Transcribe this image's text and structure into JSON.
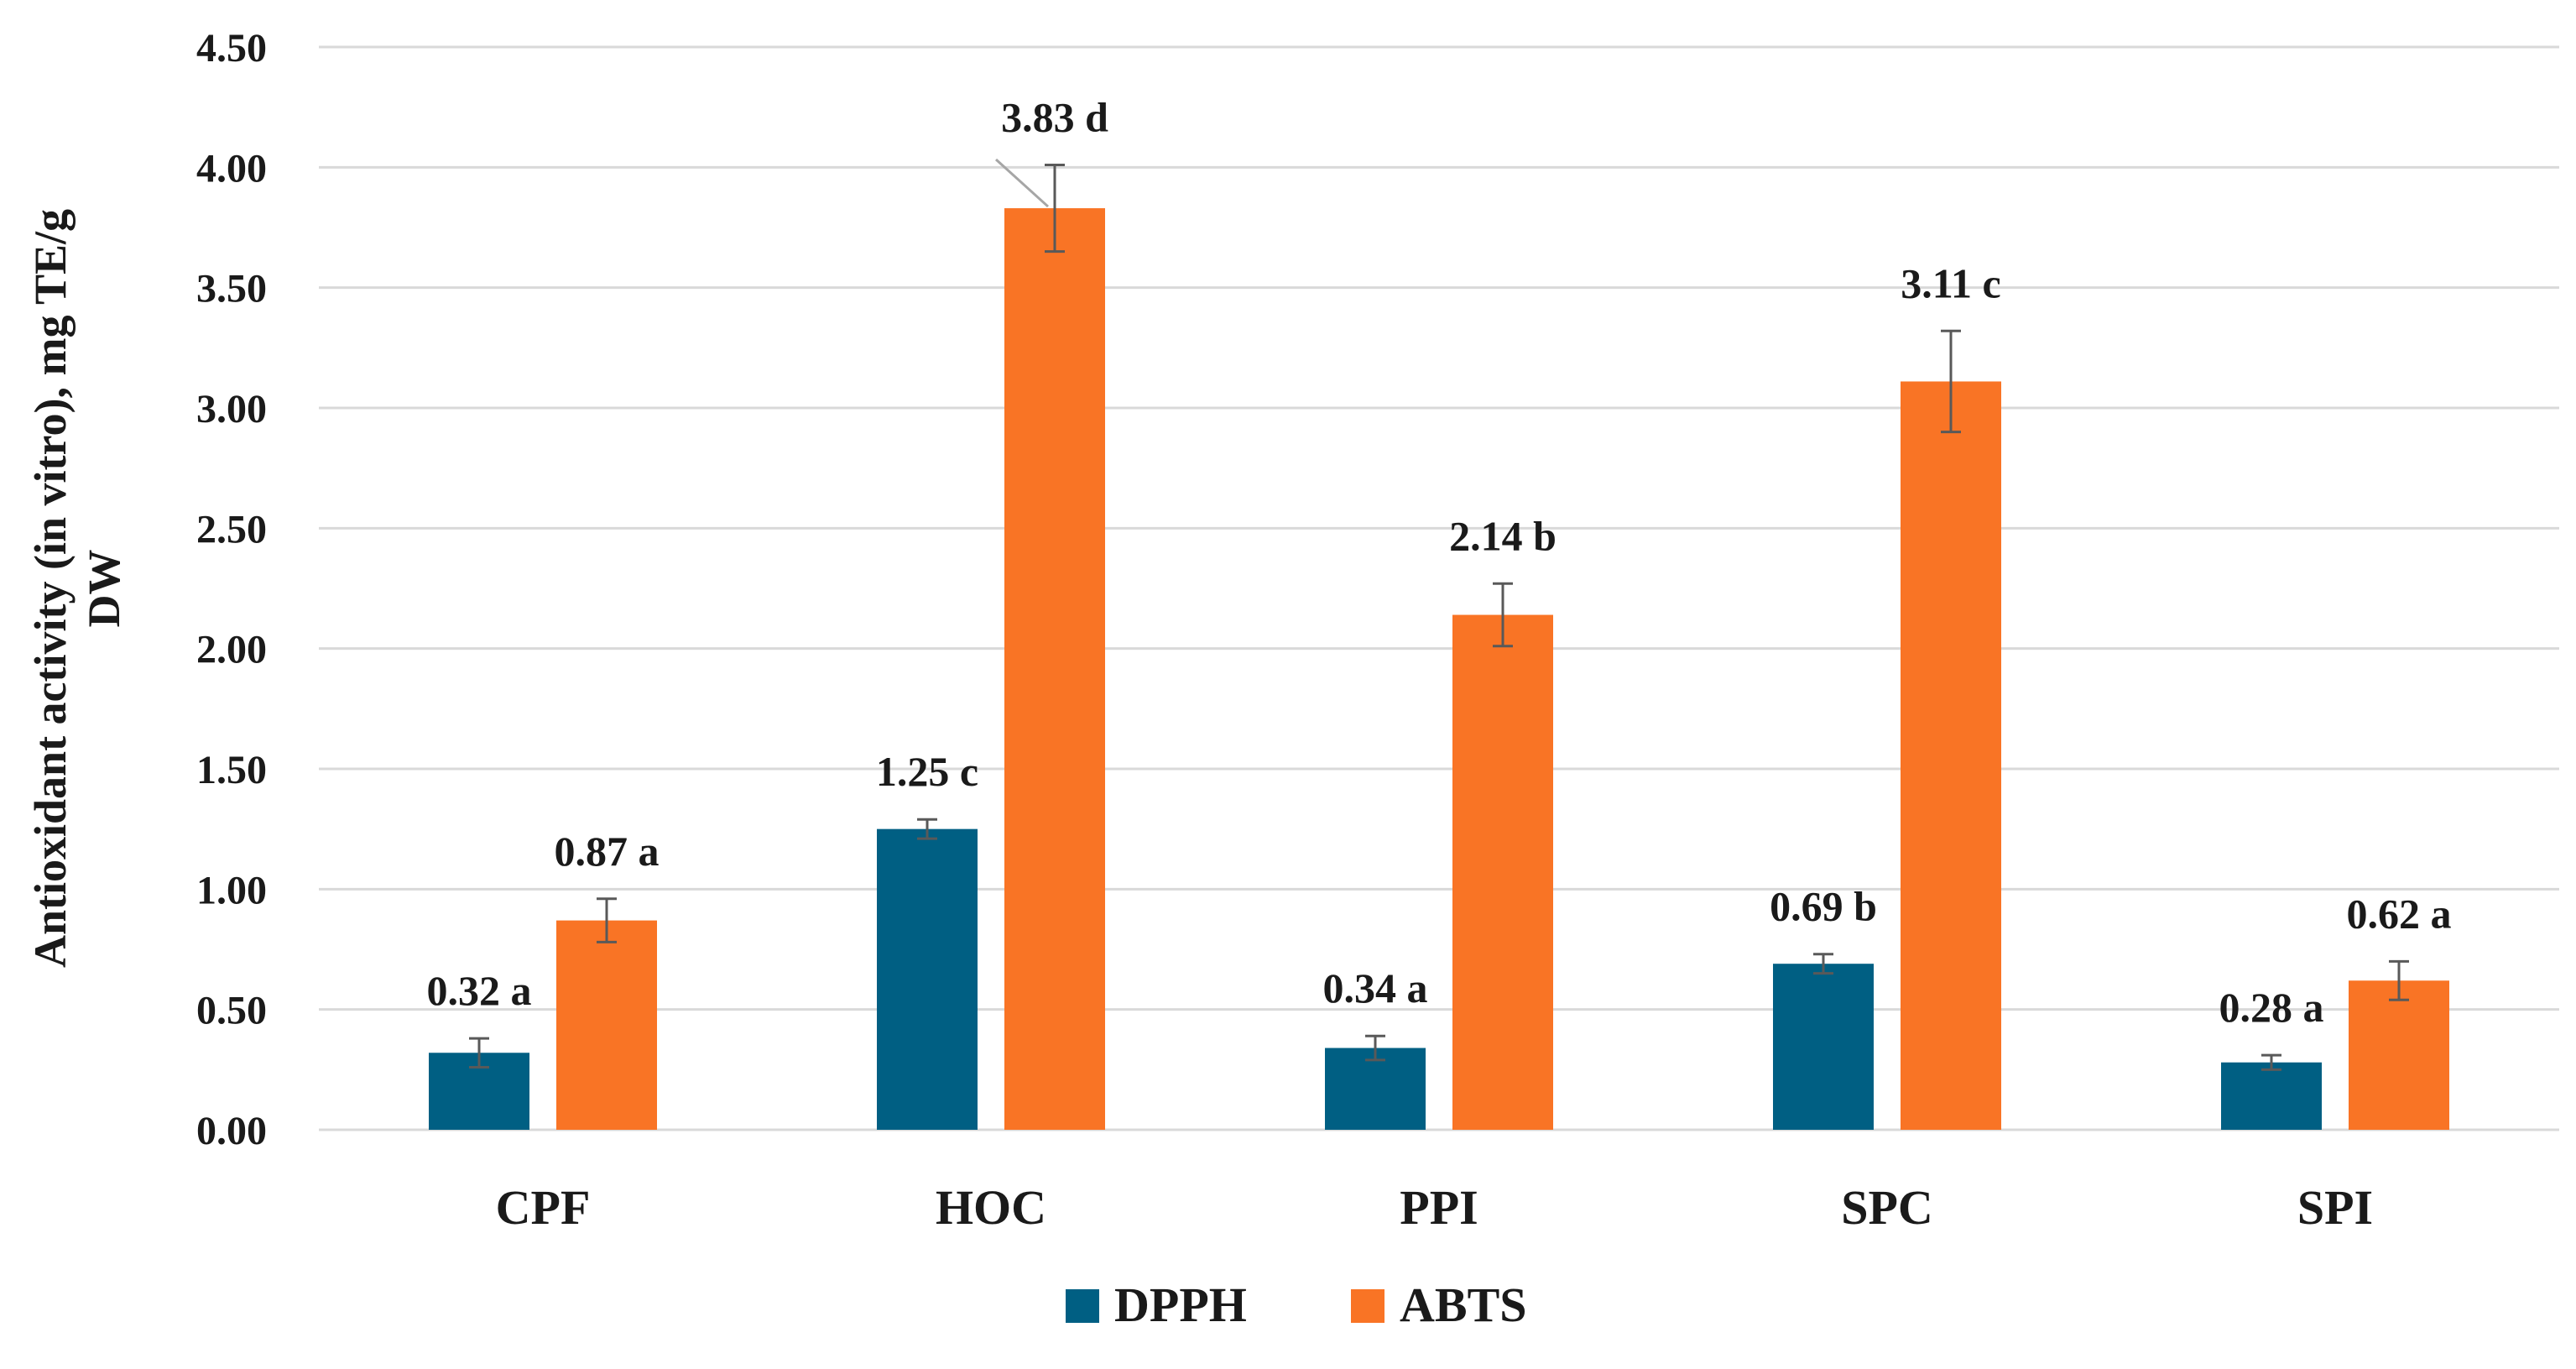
{
  "chart_data": {
    "type": "bar",
    "categories": [
      "CPF",
      "HOC",
      "PPI",
      "SPC",
      "SPI"
    ],
    "series": [
      {
        "name": "DPPH",
        "color": "#005f83",
        "values": [
          0.32,
          1.25,
          0.34,
          0.69,
          0.28
        ],
        "errors": [
          0.06,
          0.04,
          0.05,
          0.04,
          0.03
        ],
        "labels": [
          "0.32 a",
          "1.25 c",
          "0.34 a",
          "0.69 b",
          "0.28 a"
        ]
      },
      {
        "name": "ABTS",
        "color": "#f97425",
        "values": [
          0.87,
          3.83,
          2.14,
          3.11,
          0.62
        ],
        "errors": [
          0.09,
          0.18,
          0.13,
          0.21,
          0.08
        ],
        "labels": [
          "0.87 a",
          "3.83 d",
          "2.14 b",
          "3.11 c",
          "0.62 a"
        ]
      }
    ],
    "title": "",
    "xlabel": "",
    "ylabel": [
      "Antioxidant activity (in vitro), mg  TE/g",
      "DW"
    ],
    "ylim": [
      0,
      4.5
    ],
    "yticks": [
      "0.00",
      "0.50",
      "1.00",
      "1.50",
      "2.00",
      "2.50",
      "3.00",
      "3.50",
      "4.00",
      "4.50"
    ],
    "grid": true,
    "legend_position": "bottom-center"
  }
}
